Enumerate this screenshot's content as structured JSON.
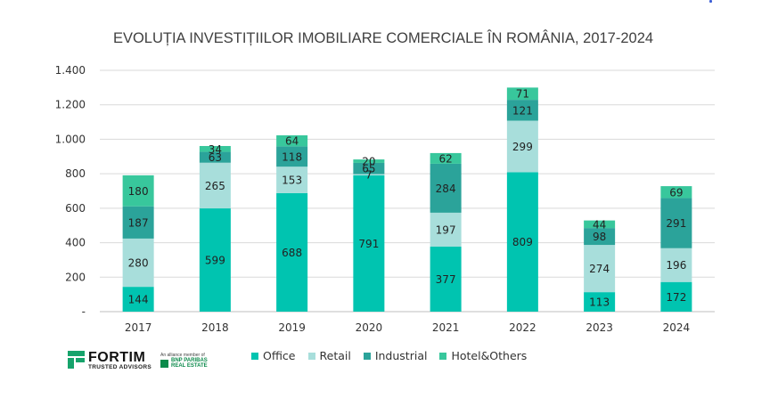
{
  "chart_data": {
    "type": "bar",
    "stacked": true,
    "title": "EVOLUȚIA INVESTIȚIILOR IMOBILIARE COMERCIALE ÎN ROMÂNIA, 2017-2024",
    "xlabel": "",
    "ylabel": "",
    "categories": [
      "2017",
      "2018",
      "2019",
      "2020",
      "2021",
      "2022",
      "2023",
      "2024"
    ],
    "ylim": [
      0,
      1400
    ],
    "y_ticks": [
      {
        "value": 0,
        "label": "-"
      },
      {
        "value": 200,
        "label": "200"
      },
      {
        "value": 400,
        "label": "400"
      },
      {
        "value": 600,
        "label": "600"
      },
      {
        "value": 800,
        "label": "800"
      },
      {
        "value": 1000,
        "label": "1.000"
      },
      {
        "value": 1200,
        "label": "1.200"
      },
      {
        "value": 1400,
        "label": "1.400"
      }
    ],
    "grid": true,
    "legend_position": "bottom",
    "series": [
      {
        "name": "Office",
        "color": "#00c4b0",
        "values": [
          144,
          599,
          688,
          791,
          377,
          809,
          113,
          172
        ]
      },
      {
        "name": "Retail",
        "color": "#a8dedb",
        "values": [
          280,
          265,
          153,
          7,
          197,
          299,
          274,
          196
        ]
      },
      {
        "name": "Industrial",
        "color": "#2ba39a",
        "values": [
          187,
          63,
          118,
          65,
          284,
          121,
          98,
          291
        ]
      },
      {
        "name": "Hotel&Others",
        "color": "#38c79c",
        "values": [
          180,
          34,
          64,
          20,
          62,
          71,
          44,
          69
        ]
      }
    ]
  },
  "branding": {
    "logo_name": "FORTIM",
    "logo_sub": "TRUSTED ADVISORS",
    "partner_small": "An alliance member of",
    "partner_name_1": "BNP PARIBAS",
    "partner_name_2": "REAL ESTATE"
  }
}
